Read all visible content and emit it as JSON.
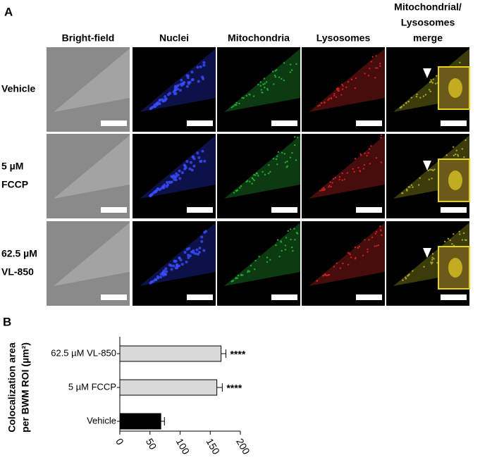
{
  "panel_a": {
    "label": "A",
    "columns": [
      [
        "Bright-field"
      ],
      [
        "Nuclei"
      ],
      [
        "Mitochondria"
      ],
      [
        "Lysosomes"
      ],
      [
        "Mitochondrial/",
        "Lysosomes",
        "merge"
      ]
    ],
    "rows": [
      [
        "Vehicle"
      ],
      [
        "5 µM",
        "FCCP"
      ],
      [
        "62.5 µM",
        "VL-850"
      ]
    ]
  },
  "chart_data": {
    "type": "bar",
    "orientation": "horizontal",
    "panel_label": "B",
    "ylabel": [
      "Colocalization area",
      "per BWM ROI (µm²)"
    ],
    "categories": [
      "62.5 µM VL-850",
      "5 µM FCCP",
      "Vehicle"
    ],
    "values": [
      168,
      161,
      68
    ],
    "errors": [
      8,
      9,
      6
    ],
    "colors": [
      "#d9d9d9",
      "#d9d9d9",
      "#000000"
    ],
    "annotations": [
      "****",
      "****",
      null
    ],
    "xlim": [
      0,
      200
    ],
    "xticks": [
      0,
      50,
      100,
      150,
      200
    ]
  }
}
